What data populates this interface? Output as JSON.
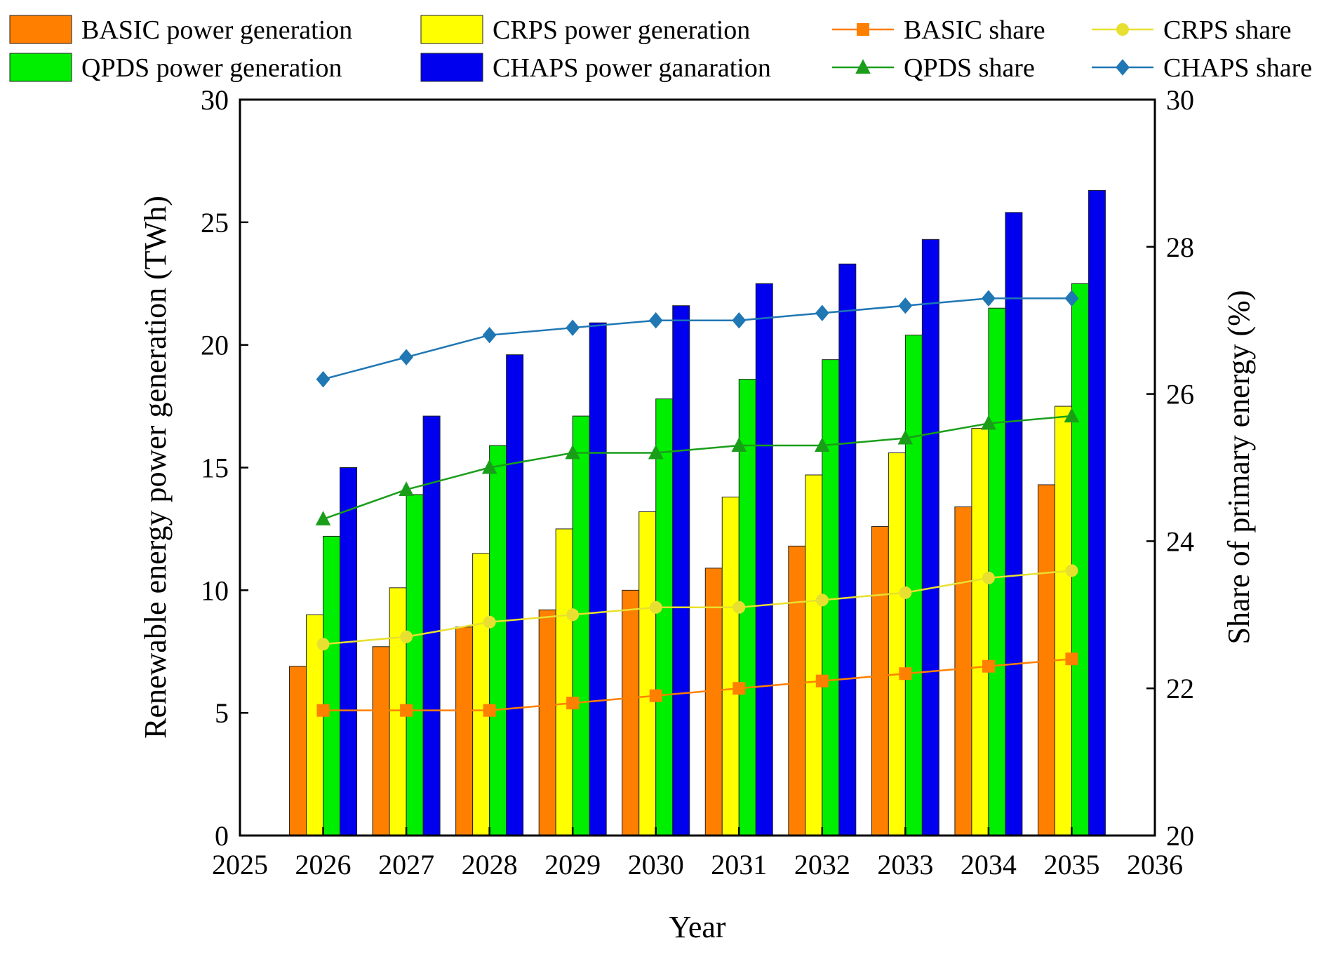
{
  "chart_data": {
    "type": "bar",
    "x_ticks": [
      2025,
      2026,
      2027,
      2028,
      2029,
      2030,
      2031,
      2032,
      2033,
      2034,
      2035,
      2036
    ],
    "categories": [
      2026,
      2027,
      2028,
      2029,
      2030,
      2031,
      2032,
      2033,
      2034,
      2035
    ],
    "xlabel": "Year",
    "ylabel_left": "Renewable energy power generation (TWh)",
    "ylabel_right": "Share of primary energy (%)",
    "xlim": [
      2025,
      2036
    ],
    "ylim_left": [
      0,
      30
    ],
    "yticks_left": [
      0,
      5,
      10,
      15,
      20,
      25,
      30
    ],
    "ylim_right": [
      20,
      30
    ],
    "yticks_right": [
      20,
      22,
      24,
      26,
      28,
      30
    ],
    "grid": false,
    "legend_position": "top",
    "bar_series": [
      {
        "name": "BASIC power generation",
        "color": "#ff7f00",
        "values": [
          6.9,
          7.7,
          8.5,
          9.2,
          10.0,
          10.9,
          11.8,
          12.6,
          13.4,
          14.3
        ]
      },
      {
        "name": "CRPS power generation",
        "color": "#ffff00",
        "values": [
          9.0,
          10.1,
          11.5,
          12.5,
          13.2,
          13.8,
          14.7,
          15.6,
          16.6,
          17.5
        ]
      },
      {
        "name": "QPDS power generation",
        "color": "#00ee00",
        "values": [
          12.2,
          13.9,
          15.9,
          17.1,
          17.8,
          18.6,
          19.4,
          20.4,
          21.5,
          22.5
        ]
      },
      {
        "name": "CHAPS power ganaration",
        "color": "#0000ee",
        "values": [
          15.0,
          17.1,
          19.6,
          20.9,
          21.6,
          22.5,
          23.3,
          24.3,
          25.4,
          26.3
        ]
      }
    ],
    "line_series": [
      {
        "name": "BASIC share",
        "color": "#ff7f00",
        "marker": "square",
        "values": [
          21.7,
          21.7,
          21.7,
          21.8,
          21.9,
          22.0,
          22.1,
          22.2,
          22.3,
          22.4
        ]
      },
      {
        "name": "CRPS share",
        "color": "#e8e030",
        "marker": "circle",
        "values": [
          22.6,
          22.7,
          22.9,
          23.0,
          23.1,
          23.1,
          23.2,
          23.3,
          23.5,
          23.6
        ]
      },
      {
        "name": "QPDS share",
        "color": "#1a9e1a",
        "marker": "triangle",
        "values": [
          24.3,
          24.7,
          25.0,
          25.2,
          25.2,
          25.3,
          25.3,
          25.4,
          25.6,
          25.7
        ]
      },
      {
        "name": "CHAPS share",
        "color": "#1f77b4",
        "marker": "diamond",
        "values": [
          26.2,
          26.5,
          26.8,
          26.9,
          27.0,
          27.0,
          27.1,
          27.2,
          27.3,
          27.3
        ]
      }
    ]
  }
}
